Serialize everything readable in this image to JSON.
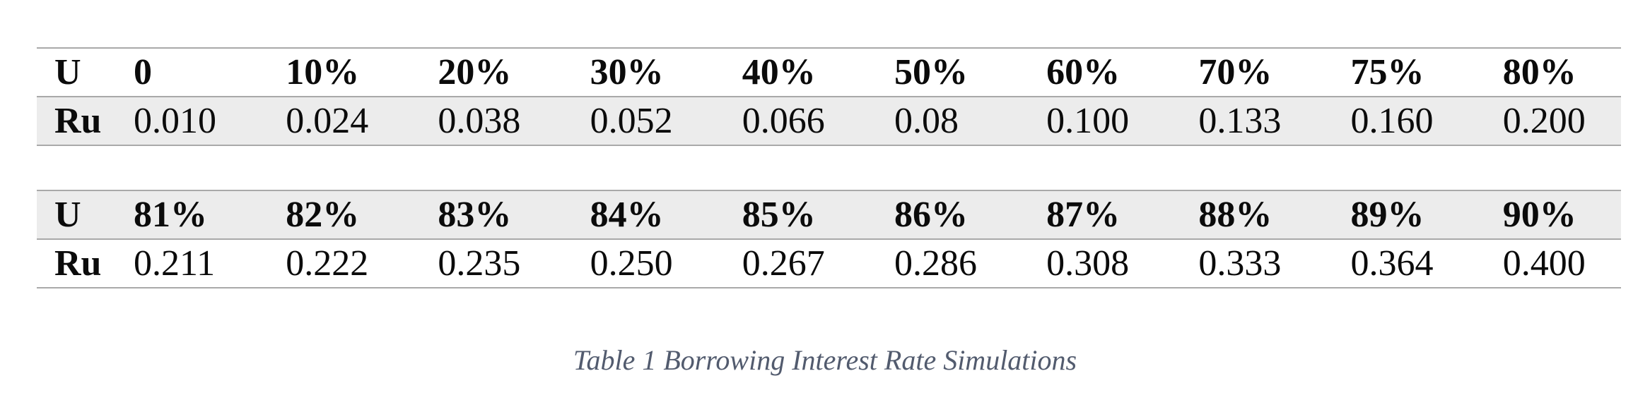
{
  "colors": {
    "row_shade": "#ececec",
    "rule": "#a9a9a9",
    "text": "#0b0b0b",
    "caption_text": "#525b6e"
  },
  "table1": {
    "u_row": {
      "label": "U",
      "values": [
        "0",
        "10%",
        "20%",
        "30%",
        "40%",
        "50%",
        "60%",
        "70%",
        "75%",
        "80%"
      ]
    },
    "ru_row": {
      "label": "Ru",
      "values": [
        "0.010",
        "0.024",
        "0.038",
        "0.052",
        "0.066",
        "0.08",
        "0.100",
        "0.133",
        "0.160",
        "0.200"
      ]
    }
  },
  "table2": {
    "u_row": {
      "label": "U",
      "values": [
        "81%",
        "82%",
        "83%",
        "84%",
        "85%",
        "86%",
        "87%",
        "88%",
        "89%",
        "90%"
      ]
    },
    "ru_row": {
      "label": "Ru",
      "values": [
        "0.211",
        "0.222",
        "0.235",
        "0.250",
        "0.267",
        "0.286",
        "0.308",
        "0.333",
        "0.364",
        "0.400"
      ]
    }
  },
  "caption": "Table 1 Borrowing Interest Rate Simulations",
  "chart_data": {
    "type": "table",
    "title": "Table 1 Borrowing Interest Rate Simulations",
    "columns": [
      "U",
      "Ru"
    ],
    "rows": [
      {
        "U": "0",
        "Ru": 0.01
      },
      {
        "U": "10%",
        "Ru": 0.024
      },
      {
        "U": "20%",
        "Ru": 0.038
      },
      {
        "U": "30%",
        "Ru": 0.052
      },
      {
        "U": "40%",
        "Ru": 0.066
      },
      {
        "U": "50%",
        "Ru": 0.08
      },
      {
        "U": "60%",
        "Ru": 0.1
      },
      {
        "U": "70%",
        "Ru": 0.133
      },
      {
        "U": "75%",
        "Ru": 0.16
      },
      {
        "U": "80%",
        "Ru": 0.2
      },
      {
        "U": "81%",
        "Ru": 0.211
      },
      {
        "U": "82%",
        "Ru": 0.222
      },
      {
        "U": "83%",
        "Ru": 0.235
      },
      {
        "U": "84%",
        "Ru": 0.25
      },
      {
        "U": "85%",
        "Ru": 0.267
      },
      {
        "U": "86%",
        "Ru": 0.286
      },
      {
        "U": "87%",
        "Ru": 0.308
      },
      {
        "U": "88%",
        "Ru": 0.333
      },
      {
        "U": "89%",
        "Ru": 0.364
      },
      {
        "U": "90%",
        "Ru": 0.4
      }
    ]
  }
}
